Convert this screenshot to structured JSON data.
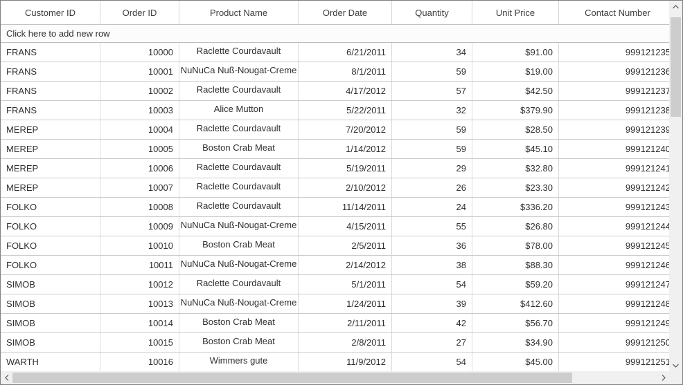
{
  "grid": {
    "columns": [
      {
        "id": "customer_id",
        "label": "Customer ID",
        "align": "left"
      },
      {
        "id": "order_id",
        "label": "Order ID",
        "align": "right"
      },
      {
        "id": "product_name",
        "label": "Product Name",
        "align": "center-top"
      },
      {
        "id": "order_date",
        "label": "Order Date",
        "align": "right"
      },
      {
        "id": "quantity",
        "label": "Quantity",
        "align": "right"
      },
      {
        "id": "unit_price",
        "label": "Unit Price",
        "align": "right"
      },
      {
        "id": "contact_number",
        "label": "Contact Number",
        "align": "right"
      }
    ],
    "add_new_row_label": "Click here to add new row",
    "rows": [
      {
        "customer_id": "FRANS",
        "order_id": "10000",
        "product_name": "Raclette Courdavault",
        "order_date": "6/21/2011",
        "quantity": "34",
        "unit_price": "$91.00",
        "contact_number": "999121235"
      },
      {
        "customer_id": "FRANS",
        "order_id": "10001",
        "product_name": "NuNuCa Nuß-Nougat-Creme",
        "order_date": "8/1/2011",
        "quantity": "59",
        "unit_price": "$19.00",
        "contact_number": "999121236"
      },
      {
        "customer_id": "FRANS",
        "order_id": "10002",
        "product_name": "Raclette Courdavault",
        "order_date": "4/17/2012",
        "quantity": "57",
        "unit_price": "$42.50",
        "contact_number": "999121237"
      },
      {
        "customer_id": "FRANS",
        "order_id": "10003",
        "product_name": "Alice Mutton",
        "order_date": "5/22/2011",
        "quantity": "32",
        "unit_price": "$379.90",
        "contact_number": "999121238"
      },
      {
        "customer_id": "MEREP",
        "order_id": "10004",
        "product_name": "Raclette Courdavault",
        "order_date": "7/20/2012",
        "quantity": "59",
        "unit_price": "$28.50",
        "contact_number": "999121239"
      },
      {
        "customer_id": "MEREP",
        "order_id": "10005",
        "product_name": "Boston Crab Meat",
        "order_date": "1/14/2012",
        "quantity": "59",
        "unit_price": "$45.10",
        "contact_number": "999121240"
      },
      {
        "customer_id": "MEREP",
        "order_id": "10006",
        "product_name": "Raclette Courdavault",
        "order_date": "5/19/2011",
        "quantity": "29",
        "unit_price": "$32.80",
        "contact_number": "999121241"
      },
      {
        "customer_id": "MEREP",
        "order_id": "10007",
        "product_name": "Raclette Courdavault",
        "order_date": "2/10/2012",
        "quantity": "26",
        "unit_price": "$23.30",
        "contact_number": "999121242"
      },
      {
        "customer_id": "FOLKO",
        "order_id": "10008",
        "product_name": "Raclette Courdavault",
        "order_date": "11/14/2011",
        "quantity": "24",
        "unit_price": "$336.20",
        "contact_number": "999121243"
      },
      {
        "customer_id": "FOLKO",
        "order_id": "10009",
        "product_name": "NuNuCa Nuß-Nougat-Creme",
        "order_date": "4/15/2011",
        "quantity": "55",
        "unit_price": "$26.80",
        "contact_number": "999121244"
      },
      {
        "customer_id": "FOLKO",
        "order_id": "10010",
        "product_name": "Boston Crab Meat",
        "order_date": "2/5/2011",
        "quantity": "36",
        "unit_price": "$78.00",
        "contact_number": "999121245"
      },
      {
        "customer_id": "FOLKO",
        "order_id": "10011",
        "product_name": "NuNuCa Nuß-Nougat-Creme",
        "order_date": "2/14/2012",
        "quantity": "38",
        "unit_price": "$88.30",
        "contact_number": "999121246"
      },
      {
        "customer_id": "SIMOB",
        "order_id": "10012",
        "product_name": "Raclette Courdavault",
        "order_date": "5/1/2011",
        "quantity": "54",
        "unit_price": "$59.20",
        "contact_number": "999121247"
      },
      {
        "customer_id": "SIMOB",
        "order_id": "10013",
        "product_name": "NuNuCa Nuß-Nougat-Creme",
        "order_date": "1/24/2011",
        "quantity": "39",
        "unit_price": "$412.60",
        "contact_number": "999121248"
      },
      {
        "customer_id": "SIMOB",
        "order_id": "10014",
        "product_name": "Boston Crab Meat",
        "order_date": "2/11/2011",
        "quantity": "42",
        "unit_price": "$56.70",
        "contact_number": "999121249"
      },
      {
        "customer_id": "SIMOB",
        "order_id": "10015",
        "product_name": "Boston Crab Meat",
        "order_date": "2/8/2011",
        "quantity": "27",
        "unit_price": "$34.90",
        "contact_number": "999121250"
      },
      {
        "customer_id": "WARTH",
        "order_id": "10016",
        "product_name": "Wimmers gute",
        "order_date": "11/9/2012",
        "quantity": "54",
        "unit_price": "$45.00",
        "contact_number": "999121251"
      }
    ]
  },
  "scrollbars": {
    "vertical": {
      "up_icon": "chevron-up",
      "down_icon": "chevron-down"
    },
    "horizontal": {
      "left_icon": "chevron-left",
      "right_icon": "chevron-right"
    }
  }
}
